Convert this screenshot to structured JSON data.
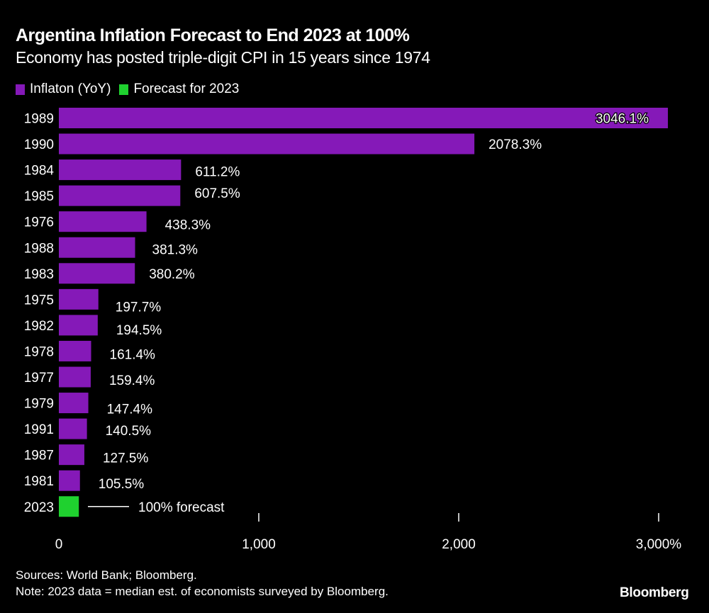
{
  "header": {
    "title": "Argentina Inflation Forecast to End 2023 at 100%",
    "subtitle": "Economy has posted triple-digit CPI in 15 years since 1974"
  },
  "legend": [
    {
      "label": "Inflaton (YoY)",
      "color": "#8519b8"
    },
    {
      "label": "Forecast for 2023",
      "color": "#1fd12f"
    }
  ],
  "footer": {
    "sources": "Sources: World Bank; Bloomberg.",
    "note": "Note: 2023 data = median est. of economists surveyed by Bloomberg.",
    "brand": "Bloomberg"
  },
  "chart_data": {
    "type": "bar",
    "orientation": "horizontal",
    "title": "Argentina Inflation Forecast to End 2023 at 100%",
    "subtitle": "Economy has posted triple-digit CPI in 15 years since 1974",
    "categories": [
      "1989",
      "1990",
      "1984",
      "1985",
      "1976",
      "1988",
      "1983",
      "1975",
      "1982",
      "1978",
      "1977",
      "1979",
      "1991",
      "1987",
      "1981",
      "2023"
    ],
    "series": [
      {
        "name": "Inflaton (YoY)",
        "color": "#8519b8",
        "values": [
          3046.1,
          2078.3,
          611.2,
          607.5,
          438.3,
          381.3,
          380.2,
          197.7,
          194.5,
          161.4,
          159.4,
          147.4,
          140.5,
          127.5,
          105.5,
          null
        ]
      },
      {
        "name": "Forecast for 2023",
        "color": "#1fd12f",
        "values": [
          null,
          null,
          null,
          null,
          null,
          null,
          null,
          null,
          null,
          null,
          null,
          null,
          null,
          null,
          null,
          100
        ]
      }
    ],
    "data_labels": [
      "3046.1%",
      "2078.3%",
      "611.2%",
      "607.5%",
      "438.3%",
      "381.3%",
      "380.2%",
      "197.7%",
      "194.5%",
      "161.4%",
      "159.4%",
      "147.4%",
      "140.5%",
      "127.5%",
      "105.5%",
      "100% forecast"
    ],
    "xlim": [
      0,
      3050
    ],
    "xticks": [
      0,
      1000,
      2000,
      3000
    ],
    "xtick_labels": [
      "0",
      "1,000",
      "2,000",
      "3,000%"
    ],
    "xlabel": "",
    "ylabel": "",
    "grid": false,
    "legend_position": "top-left"
  }
}
